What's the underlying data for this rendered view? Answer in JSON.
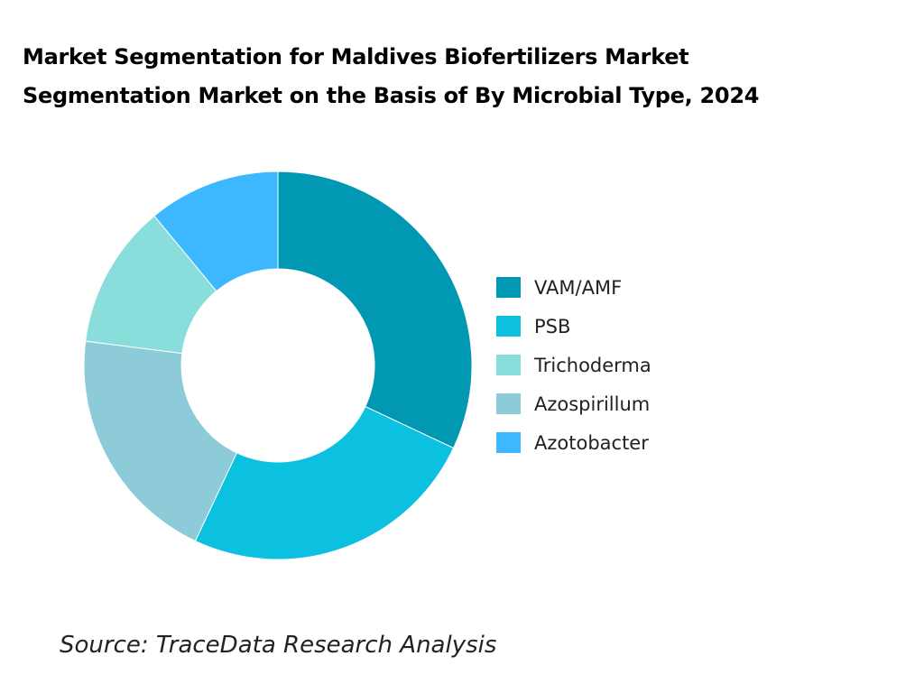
{
  "title_line1": "Market Segmentation for Maldives Biofertilizers Market",
  "title_line2": "Segmentation Market on the Basis of By Microbial Type, 2024",
  "source": "Source: TraceData Research Analysis",
  "chart_data": {
    "type": "pie",
    "subtype": "donut",
    "unit": "percent (estimated)",
    "slices_clockwise_from_top": [
      {
        "name": "VAM/AMF",
        "value": 32,
        "color": "#0098B2"
      },
      {
        "name": "PSB",
        "value": 25,
        "color": "#0CC1E0"
      },
      {
        "name": "Azospirillum",
        "value": 20,
        "color": "#8ECBD8"
      },
      {
        "name": "Trichoderma",
        "value": 12,
        "color": "#89DDDA"
      },
      {
        "name": "Azotobacter",
        "value": 11,
        "color": "#3DB7FF"
      }
    ],
    "legend": [
      "VAM/AMF",
      "PSB",
      "Trichoderma",
      "Azospirillum",
      "Azotobacter"
    ],
    "legend_placement": "right"
  }
}
